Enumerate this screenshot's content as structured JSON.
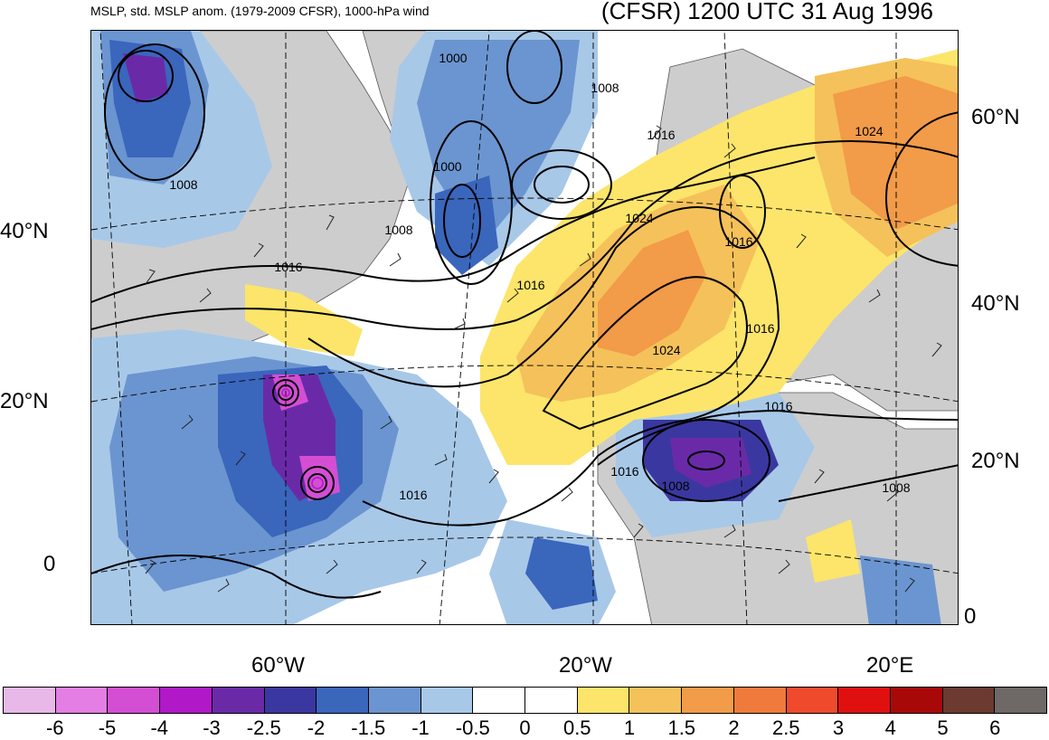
{
  "header": {
    "subtitle": "MSLP, std. MSLP anom. (1979-2009 CFSR), 1000-hPa wind",
    "title": "(CFSR) 1200 UTC 31 Aug 1996"
  },
  "axes": {
    "left_lat_labels": [
      "40°N",
      "20°N",
      "0"
    ],
    "right_lat_labels": [
      "60°N",
      "40°N",
      "20°N",
      "0"
    ],
    "lon_labels": [
      "60°W",
      "20°W",
      "20°E"
    ]
  },
  "isobars": {
    "labels": [
      "1000",
      "1008",
      "1000",
      "1008",
      "1016",
      "1016",
      "1008",
      "1016",
      "1024",
      "1024",
      "1016",
      "1024",
      "1016",
      "1016",
      "1016",
      "1008",
      "1008",
      "1016"
    ]
  },
  "colorbar": {
    "labels": [
      "-6",
      "-5",
      "-4",
      "-3",
      "-2.5",
      "-2",
      "-1.5",
      "-1",
      "-0.5",
      "0",
      "0.5",
      "1",
      "1.5",
      "2",
      "2.5",
      "3",
      "4",
      "5",
      "6"
    ],
    "colors": [
      "#e8b8e8",
      "#e47ee4",
      "#d44ed4",
      "#b018c8",
      "#6a2aa8",
      "#3a38a0",
      "#3a66bc",
      "#6b95d0",
      "#a8c8e8",
      "#ffffff",
      "#ffffff",
      "#fce56a",
      "#f5c15a",
      "#f29b48",
      "#ef7a3c",
      "#ef4a2c",
      "#e01010",
      "#a80808",
      "#6b3a30",
      "#6e6866"
    ]
  },
  "map": {
    "colors": {
      "land": "#cdcdcd",
      "ocean": "#ffffff"
    }
  }
}
